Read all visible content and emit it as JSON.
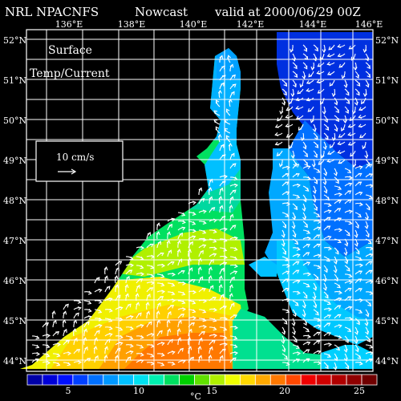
{
  "header": {
    "model": "NRL NPACNFS",
    "product": "Nowcast",
    "valid": "valid at 2000/06/29 00Z"
  },
  "map_title": {
    "line1": "Surface",
    "line2": "Temp/Current"
  },
  "vector_key": {
    "label": "10 cm/s",
    "speed_cm_s": 10
  },
  "longitude_labels": [
    "136°E",
    "138°E",
    "140°E",
    "142°E",
    "144°E",
    "146°E"
  ],
  "latitude_labels": [
    "52°N",
    "51°N",
    "50°N",
    "49°N",
    "48°N",
    "47°N",
    "46°N",
    "45°N",
    "44°N"
  ],
  "colorbar": {
    "ticks": [
      "5",
      "10",
      "15",
      "20",
      "25"
    ],
    "unit": "°C",
    "colors": [
      "#0000a8",
      "#0000d8",
      "#0010ff",
      "#0040ff",
      "#0070ff",
      "#0098ff",
      "#00c0ff",
      "#00e0f0",
      "#00f0b0",
      "#00e060",
      "#00d000",
      "#60e000",
      "#b0f000",
      "#f0ff00",
      "#ffd800",
      "#ffa800",
      "#ff7800",
      "#ff4800",
      "#f00000",
      "#d00000",
      "#b00000",
      "#900000",
      "#700000"
    ]
  },
  "colors": {
    "background": "#000000",
    "grid": "#ffffff",
    "text": "#ffffff"
  }
}
